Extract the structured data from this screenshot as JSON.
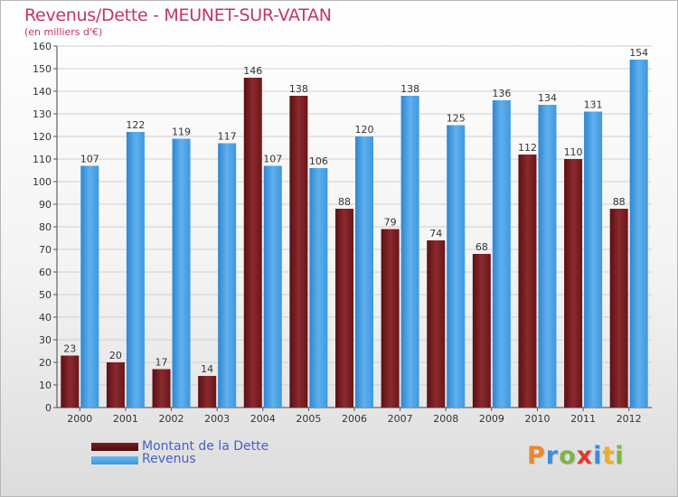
{
  "chart_data": {
    "type": "bar",
    "title": "Revenus/Dette - MEUNET-SUR-VATAN",
    "subtitle": "(en milliers d'€)",
    "categories": [
      "2000",
      "2001",
      "2002",
      "2003",
      "2004",
      "2005",
      "2006",
      "2007",
      "2008",
      "2009",
      "2010",
      "2011",
      "2012"
    ],
    "series": [
      {
        "name": "Montant de la Dette",
        "color": "#7a1e22",
        "values": [
          23,
          20,
          17,
          14,
          146,
          138,
          88,
          79,
          74,
          68,
          112,
          110,
          88
        ]
      },
      {
        "name": "Revenus",
        "color": "#3d98e0",
        "values": [
          107,
          122,
          119,
          117,
          107,
          106,
          120,
          138,
          125,
          136,
          134,
          131,
          154
        ]
      }
    ],
    "ylim": [
      0,
      160
    ],
    "ytick_step": 10,
    "grid": true,
    "legend_position": "bottom-left"
  },
  "logo": {
    "letters": [
      "P",
      "r",
      "o",
      "x",
      "i",
      "t",
      "i"
    ],
    "colors": [
      "#e8892b",
      "#3b8fd6",
      "#7ab648",
      "#e03a2f",
      "#3b8fd6",
      "#e8b02b",
      "#7ab648"
    ]
  }
}
